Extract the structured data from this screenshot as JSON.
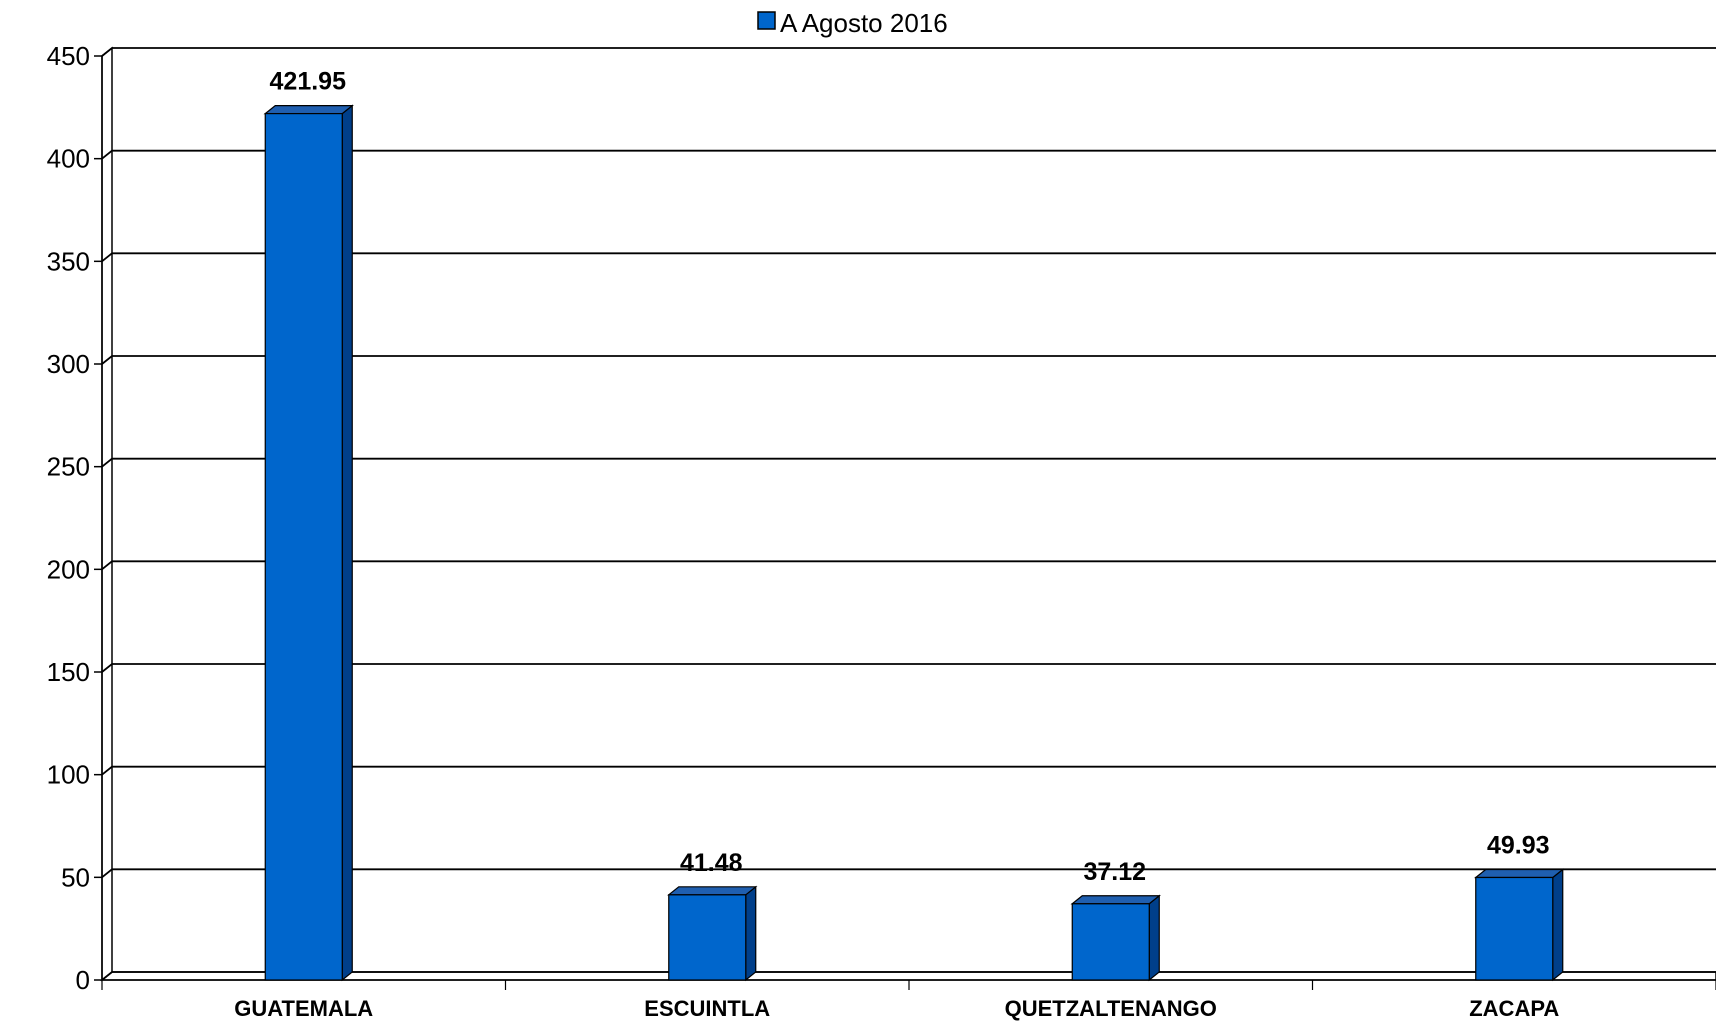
{
  "chart_data": {
    "type": "bar",
    "categories": [
      "GUATEMALA",
      "ESCUINTLA",
      "QUETZALTENANGO",
      "ZACAPA"
    ],
    "series": [
      {
        "name": "A Agosto 2016",
        "values": [
          421.95,
          41.48,
          37.12,
          49.93
        ]
      }
    ],
    "data_labels": [
      "421.95",
      "41.48",
      "37.12",
      "49.93"
    ],
    "yticks": [
      "0",
      "50",
      "100",
      "150",
      "200",
      "250",
      "300",
      "350",
      "400",
      "450"
    ],
    "ylim": [
      0,
      450
    ],
    "grid": true,
    "legend_position": "top",
    "bar_color": "#0066cc",
    "bar_side_color": "#003f8a",
    "bar_top_color": "#1f5fb0"
  }
}
